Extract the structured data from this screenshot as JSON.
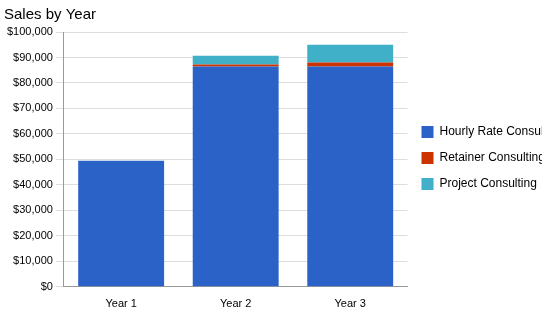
{
  "chart_data": {
    "type": "bar",
    "title": "Sales by Year",
    "categories": [
      "Year 1",
      "Year 2",
      "Year 3"
    ],
    "series": [
      {
        "name": "Hourly Rate Consulting",
        "color": "#2a62c8",
        "values": [
          49500,
          86500,
          86500
        ]
      },
      {
        "name": "Retainer Consulting",
        "color": "#cc3300",
        "values": [
          0,
          700,
          1500
        ]
      },
      {
        "name": "Project Consulting",
        "color": "#3fb0c8",
        "values": [
          0,
          3500,
          7000
        ]
      }
    ],
    "ylim": [
      0,
      100000
    ],
    "yticks": [
      {
        "value": 0,
        "label": "$0"
      },
      {
        "value": 10000,
        "label": "$10,000"
      },
      {
        "value": 20000,
        "label": "$20,000"
      },
      {
        "value": 30000,
        "label": "$30,000"
      },
      {
        "value": 40000,
        "label": "$40,000"
      },
      {
        "value": 50000,
        "label": "$50,000"
      },
      {
        "value": 60000,
        "label": "$60,000"
      },
      {
        "value": 70000,
        "label": "$70,000"
      },
      {
        "value": 80000,
        "label": "$80,000"
      },
      {
        "value": 90000,
        "label": "$90,000"
      },
      {
        "value": 100000,
        "label": "$100,000"
      }
    ],
    "grid": true,
    "stacked": true,
    "legend": "right"
  }
}
